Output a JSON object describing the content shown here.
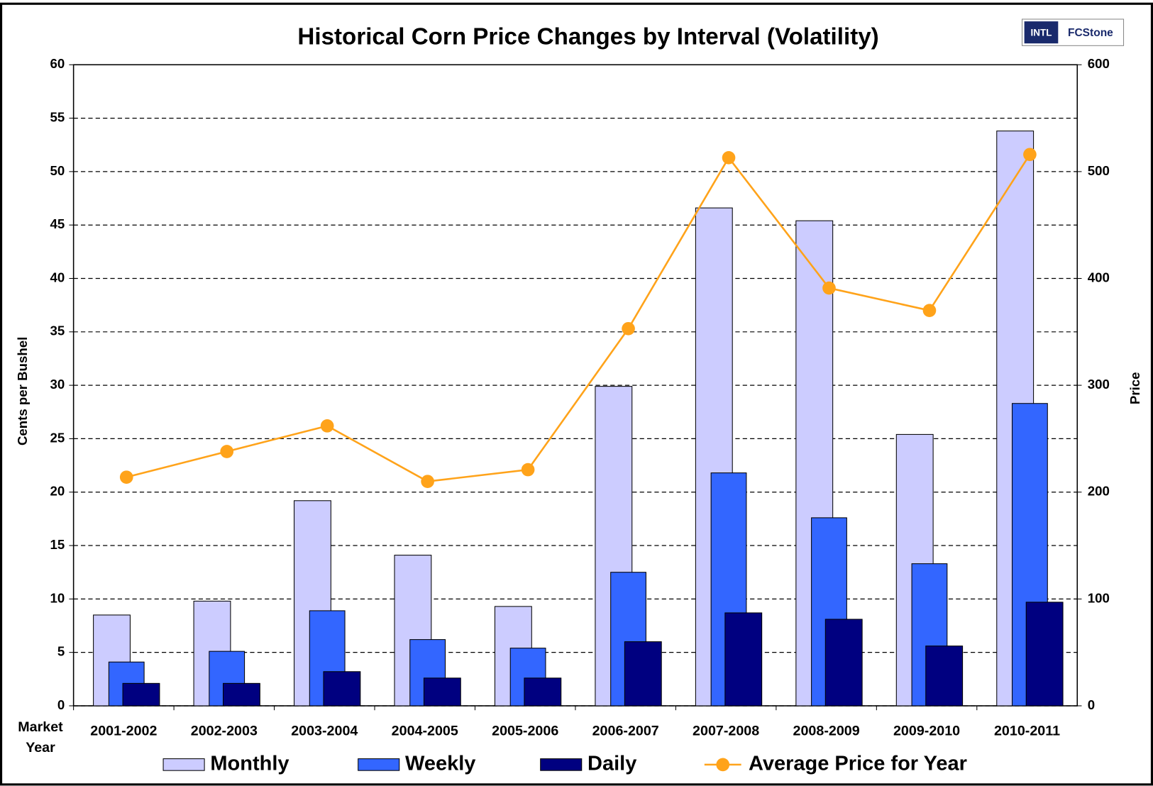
{
  "chart_data": {
    "type": "bar_line",
    "title": "Historical Corn Price Changes by Interval (Volatility)",
    "logo": [
      "INTL",
      "FCStone"
    ],
    "x_label": "Market Year",
    "y_label": "Cents per Bushel",
    "y2_label": "Price",
    "categories": [
      "2001-2002",
      "2002-2003",
      "2003-2004",
      "2004-2005",
      "2005-2006",
      "2006-2007",
      "2007-2008",
      "2008-2009",
      "2009-2010",
      "2010-2011"
    ],
    "series": [
      {
        "name": "Monthly",
        "type": "bar",
        "color": "#ccccff",
        "values": [
          8.5,
          9.8,
          19.2,
          14.1,
          9.3,
          29.9,
          46.6,
          45.4,
          25.4,
          53.8
        ]
      },
      {
        "name": "Weekly",
        "type": "bar",
        "color": "#3366ff",
        "values": [
          4.1,
          5.1,
          8.9,
          6.2,
          5.4,
          12.5,
          21.8,
          17.6,
          13.3,
          28.3
        ]
      },
      {
        "name": "Daily",
        "type": "bar",
        "color": "#000080",
        "values": [
          2.1,
          2.1,
          3.2,
          2.6,
          2.6,
          6.0,
          8.7,
          8.1,
          5.6,
          9.7
        ]
      },
      {
        "name": "Average Price for Year",
        "type": "line",
        "axis": "y2",
        "color": "#ffa31a",
        "values": [
          214,
          238,
          262,
          210,
          221,
          353,
          513,
          391,
          370,
          516
        ]
      }
    ],
    "ylim": [
      0,
      60
    ],
    "yticks": [
      0,
      5,
      10,
      15,
      20,
      25,
      30,
      35,
      40,
      45,
      50,
      55,
      60
    ],
    "y2lim": [
      0,
      600
    ],
    "y2ticks": [
      0,
      100,
      200,
      300,
      400,
      500,
      600
    ],
    "grid": true,
    "legend": "bottom"
  }
}
